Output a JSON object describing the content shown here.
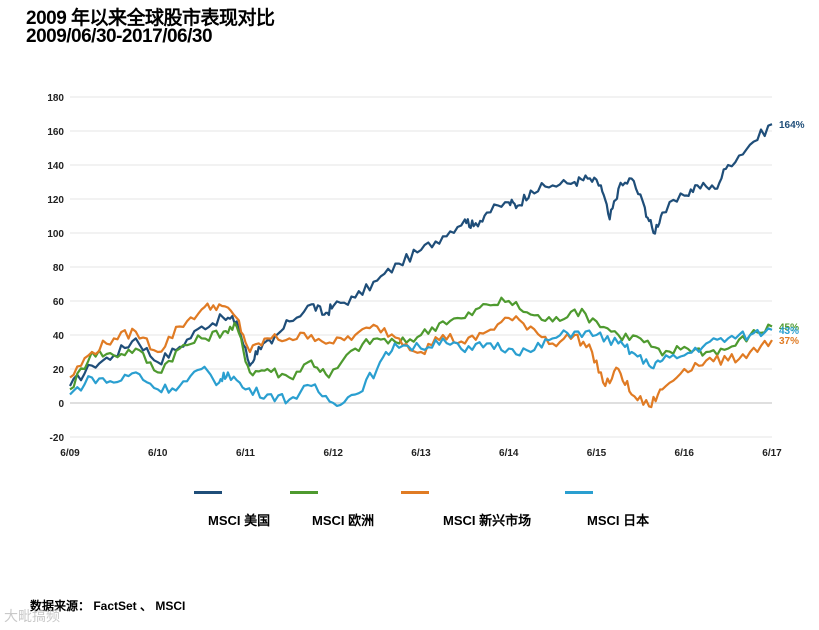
{
  "title_line1": "2009 年以来全球股市表现对比",
  "title_line2": "2009/06/30-2017/06/30",
  "source_text": "数据来源： FactSet 、 MSCI",
  "watermark_text": "大毗搞频",
  "chart_data": {
    "type": "line",
    "ylim": [
      -20,
      180
    ],
    "yticks": [
      -20,
      0,
      20,
      40,
      60,
      80,
      100,
      120,
      140,
      160,
      180
    ],
    "xlim": [
      2009.5,
      2017.5
    ],
    "xticks": [
      {
        "label": "6/09",
        "value": 2009.5
      },
      {
        "label": "6/10",
        "value": 2010.5
      },
      {
        "label": "6/11",
        "value": 2011.5
      },
      {
        "label": "6/12",
        "value": 2012.5
      },
      {
        "label": "6/13",
        "value": 2013.5
      },
      {
        "label": "6/14",
        "value": 2014.5
      },
      {
        "label": "6/15",
        "value": 2015.5
      },
      {
        "label": "6/16",
        "value": 2016.5
      },
      {
        "label": "6/17",
        "value": 2017.5
      }
    ],
    "grid": true,
    "legend_position": "bottom",
    "series": [
      {
        "name": "MSCI 美国",
        "color": "#1f4e79",
        "end_label": "164%",
        "x": [
          2009.5,
          2009.75,
          2010.0,
          2010.25,
          2010.5,
          2010.75,
          2011.0,
          2011.25,
          2011.4,
          2011.55,
          2011.65,
          2011.8,
          2012.0,
          2012.25,
          2012.4,
          2012.5,
          2012.75,
          2013.0,
          2013.25,
          2013.5,
          2013.75,
          2014.0,
          2014.1,
          2014.25,
          2014.5,
          2014.6,
          2014.75,
          2015.0,
          2015.25,
          2015.4,
          2015.55,
          2015.65,
          2015.75,
          2015.9,
          2016.05,
          2016.15,
          2016.25,
          2016.5,
          2016.65,
          2016.85,
          2017.0,
          2017.25,
          2017.5
        ],
        "values": [
          10,
          22,
          28,
          38,
          24,
          33,
          45,
          50,
          48,
          22,
          33,
          35,
          48,
          58,
          52,
          57,
          62,
          72,
          82,
          90,
          98,
          108,
          104,
          112,
          118,
          116,
          125,
          128,
          130,
          132,
          128,
          108,
          126,
          132,
          115,
          100,
          112,
          122,
          128,
          126,
          140,
          152,
          164
        ]
      },
      {
        "name": "MSCI 欧洲",
        "color": "#4e9a2f",
        "end_label": "45%",
        "x": [
          2009.5,
          2009.75,
          2010.0,
          2010.25,
          2010.5,
          2010.75,
          2011.0,
          2011.25,
          2011.4,
          2011.55,
          2011.75,
          2012.0,
          2012.25,
          2012.45,
          2012.75,
          2013.0,
          2013.25,
          2013.5,
          2013.75,
          2014.0,
          2014.25,
          2014.5,
          2014.75,
          2015.0,
          2015.25,
          2015.5,
          2015.75,
          2016.0,
          2016.25,
          2016.5,
          2016.75,
          2017.0,
          2017.25,
          2017.5
        ],
        "values": [
          8,
          30,
          28,
          32,
          18,
          32,
          38,
          42,
          45,
          18,
          20,
          15,
          25,
          15,
          32,
          38,
          35,
          40,
          48,
          50,
          58,
          60,
          52,
          48,
          55,
          48,
          40,
          38,
          28,
          33,
          30,
          32,
          40,
          45
        ]
      },
      {
        "name": "MSCI 新兴市场",
        "color": "#e07b24",
        "end_label": "37%",
        "x": [
          2009.5,
          2009.75,
          2010.0,
          2010.25,
          2010.5,
          2010.75,
          2011.0,
          2011.2,
          2011.4,
          2011.55,
          2011.75,
          2012.0,
          2012.25,
          2012.5,
          2012.75,
          2013.0,
          2013.25,
          2013.5,
          2013.75,
          2014.0,
          2014.25,
          2014.5,
          2014.75,
          2015.0,
          2015.25,
          2015.45,
          2015.6,
          2015.75,
          2015.9,
          2016.1,
          2016.25,
          2016.5,
          2016.75,
          2017.0,
          2017.25,
          2017.5
        ],
        "values": [
          15,
          30,
          38,
          42,
          30,
          45,
          55,
          58,
          50,
          30,
          38,
          38,
          40,
          35,
          40,
          45,
          38,
          30,
          40,
          35,
          42,
          50,
          45,
          35,
          40,
          30,
          10,
          20,
          5,
          -2,
          8,
          20,
          25,
          25,
          30,
          37
        ]
      },
      {
        "name": "MSCI 日本",
        "color": "#2a9fd0",
        "end_label": "43%",
        "x": [
          2009.5,
          2009.75,
          2010.0,
          2010.25,
          2010.5,
          2010.75,
          2011.0,
          2011.2,
          2011.3,
          2011.5,
          2011.75,
          2012.0,
          2012.25,
          2012.5,
          2012.75,
          2013.0,
          2013.2,
          2013.5,
          2013.75,
          2014.0,
          2014.25,
          2014.5,
          2014.75,
          2015.0,
          2015.25,
          2015.5,
          2015.75,
          2015.9,
          2016.1,
          2016.25,
          2016.5,
          2016.75,
          2017.0,
          2017.25,
          2017.5
        ],
        "values": [
          5,
          15,
          12,
          18,
          8,
          10,
          20,
          12,
          18,
          8,
          5,
          2,
          10,
          0,
          5,
          20,
          35,
          32,
          38,
          30,
          35,
          32,
          30,
          38,
          42,
          40,
          35,
          30,
          22,
          25,
          28,
          35,
          38,
          40,
          43
        ]
      }
    ]
  }
}
